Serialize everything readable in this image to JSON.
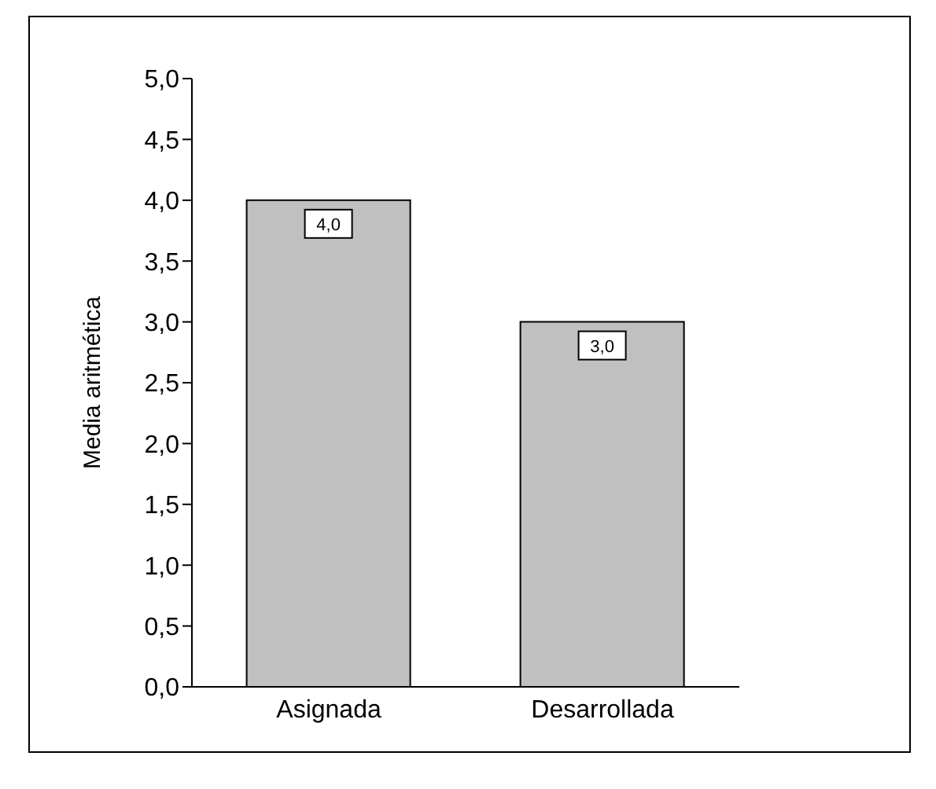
{
  "chart_data": {
    "type": "bar",
    "ylabel": "Media aritmética",
    "categories": [
      "Asignada",
      "Desarrollada"
    ],
    "values": [
      4.0,
      3.0
    ],
    "color": "#c0c0c0",
    "value_labels": [
      "4,0",
      "3,0"
    ],
    "ylim": [
      0,
      5
    ],
    "yticks": [
      {
        "value": 0,
        "label": "0,0"
      },
      {
        "value": 0.5,
        "label": "0,5"
      },
      {
        "value": 1,
        "label": "1,0"
      },
      {
        "value": 1.5,
        "label": "1,5"
      },
      {
        "value": 2,
        "label": "2,0"
      },
      {
        "value": 2.5,
        "label": "2,5"
      },
      {
        "value": 3,
        "label": "3,0"
      },
      {
        "value": 3.5,
        "label": "3,5"
      },
      {
        "value": 4,
        "label": "4,0"
      },
      {
        "value": 4.5,
        "label": "4,5"
      },
      {
        "value": 5,
        "label": "5,0"
      }
    ],
    "grid": false,
    "legend": false
  }
}
